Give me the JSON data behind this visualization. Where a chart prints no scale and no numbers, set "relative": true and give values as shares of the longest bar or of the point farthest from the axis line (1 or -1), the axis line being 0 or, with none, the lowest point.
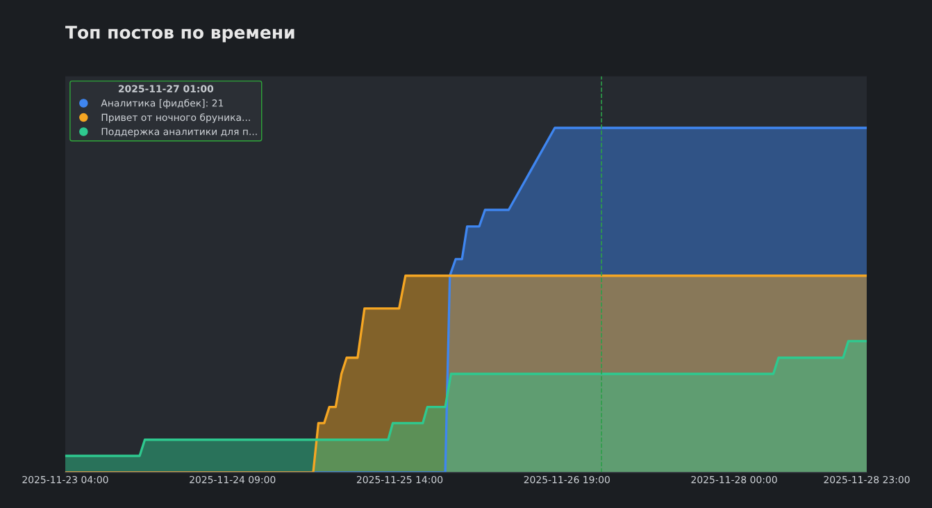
{
  "chart_data": {
    "type": "area",
    "title": "Топ постов по времени",
    "relative": true,
    "legend": "top left",
    "legend_title": "2025-11-27 01:00",
    "grid": false,
    "marker": "none",
    "line_style": "solid",
    "xlim": [
      "2025-11-23T04:00",
      "2025-11-28T23:00"
    ],
    "xticks": [
      {
        "value": "2025-11-23T04:00",
        "label": "2025-11-23 04:00"
      },
      {
        "value": "2025-11-24T09:00",
        "label": "2025-11-24 09:00"
      },
      {
        "value": "2025-11-25T14:00",
        "label": "2025-11-25 14:00"
      },
      {
        "value": "2025-11-26T19:00",
        "label": "2025-11-26 19:00"
      },
      {
        "value": "2025-11-28T00:00",
        "label": "2025-11-28 00:00"
      },
      {
        "value": "2025-11-28T23:00",
        "label": "2025-11-28 23:00"
      }
    ],
    "ref_lines": [
      {
        "axis": "x",
        "value": "2025-11-27T01:00",
        "label": null,
        "color": "#2e9e4a",
        "line_style": "dashed"
      }
    ],
    "series": [
      {
        "name": "Аналитика [фидбек]: 21",
        "color": "#3f86f0",
        "x": [
          "2025-11-23T04:00",
          "2025-11-25T21:54",
          "2025-11-25T22:42",
          "2025-11-25T23:42",
          "2025-11-26T00:48",
          "2025-11-26T01:42",
          "2025-11-26T03:48",
          "2025-11-26T04:48",
          "2025-11-26T08:54",
          "2025-11-26T16:54",
          "2025-11-28T23:00"
        ],
        "values": [
          0,
          0,
          0.571,
          0.619,
          0.619,
          0.714,
          0.714,
          0.762,
          0.762,
          1,
          1
        ]
      },
      {
        "name": "Привет от ночного бруника...",
        "color": "#f5a623",
        "x": [
          "2025-11-23T04:00",
          "2025-11-24T23:00",
          "2025-11-24T23:54",
          "2025-11-25T00:54",
          "2025-11-25T01:48",
          "2025-11-25T02:54",
          "2025-11-25T03:54",
          "2025-11-25T04:48",
          "2025-11-25T06:42",
          "2025-11-25T07:54",
          "2025-11-25T13:54",
          "2025-11-25T15:00",
          "2025-11-28T23:00"
        ],
        "values": [
          0,
          0,
          0.143,
          0.143,
          0.19,
          0.19,
          0.286,
          0.333,
          0.333,
          0.476,
          0.476,
          0.571,
          0.571
        ]
      },
      {
        "name": "Поддержка аналитики для п...",
        "color": "#2ec98f",
        "x": [
          "2025-11-23T04:00",
          "2025-11-23T16:54",
          "2025-11-23T17:48",
          "2025-11-25T12:00",
          "2025-11-25T12:48",
          "2025-11-25T18:00",
          "2025-11-25T18:48",
          "2025-11-25T21:54",
          "2025-11-25T22:54",
          "2025-11-28T06:48",
          "2025-11-28T07:42",
          "2025-11-28T18:54",
          "2025-11-28T19:48",
          "2025-11-28T23:00"
        ],
        "values": [
          0.048,
          0.048,
          0.095,
          0.095,
          0.143,
          0.143,
          0.19,
          0.19,
          0.286,
          0.286,
          0.333,
          0.333,
          0.381,
          0.381
        ]
      }
    ]
  }
}
